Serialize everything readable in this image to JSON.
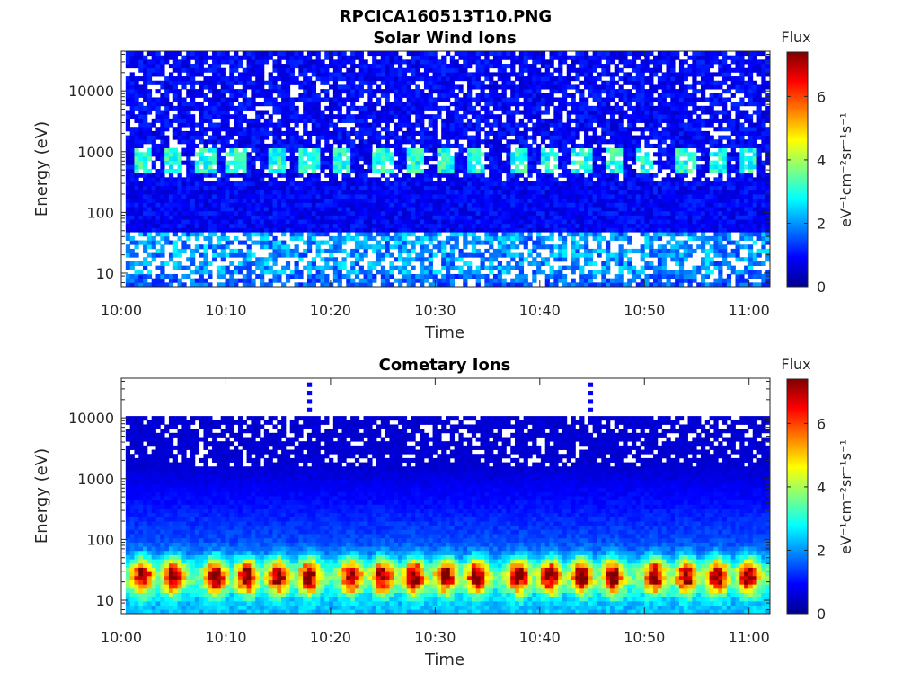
{
  "figure": {
    "title": "RPCICA160513T10.PNG"
  },
  "chart_data": [
    {
      "type": "heatmap",
      "title": "Solar Wind Ions",
      "xlabel": "Time",
      "ylabel": "Energy (eV)",
      "x_range": [
        "10:00",
        "11:02"
      ],
      "x_ticks": [
        "10:00",
        "10:10",
        "10:20",
        "10:30",
        "10:40",
        "10:50",
        "11:00"
      ],
      "y_scale": "log",
      "y_range": [
        6,
        45000
      ],
      "y_ticks": [
        10,
        100,
        1000,
        10000
      ],
      "y_tick_labels": [
        "10",
        "100",
        "1000",
        "10000"
      ],
      "colorbar": {
        "title": "Flux",
        "label": "eV⁻¹cm⁻²sr⁻¹s⁻¹",
        "range": [
          0,
          7.4
        ],
        "ticks": [
          0,
          2,
          4,
          6
        ],
        "colormap": "jet"
      },
      "features": {
        "background_level": 0.9,
        "periodic_peak_energy_eV": 700,
        "periodic_peak_level": 3.0,
        "peak_times": [
          "10:02",
          "10:05",
          "10:08",
          "10:11",
          "10:15",
          "10:18",
          "10:21",
          "10:25",
          "10:28",
          "10:31",
          "10:34",
          "10:38",
          "10:41",
          "10:44",
          "10:47",
          "10:50",
          "10:54",
          "10:57",
          "11:00"
        ],
        "low_energy_band_eV": [
          12,
          40
        ],
        "low_energy_band_level": 2.5
      }
    },
    {
      "type": "heatmap",
      "title": "Cometary Ions",
      "xlabel": "Time",
      "ylabel": "Energy (eV)",
      "x_range": [
        "10:00",
        "11:02"
      ],
      "x_ticks": [
        "10:00",
        "10:10",
        "10:20",
        "10:30",
        "10:40",
        "10:50",
        "11:00"
      ],
      "y_scale": "log",
      "y_range": [
        6,
        45000
      ],
      "y_ticks": [
        10,
        100,
        1000,
        10000
      ],
      "y_tick_labels": [
        "10",
        "100",
        "1000",
        "10000"
      ],
      "colorbar": {
        "title": "Flux",
        "label": "eV⁻¹cm⁻²sr⁻¹s⁻¹",
        "range": [
          0,
          7.4
        ],
        "ticks": [
          0,
          2,
          4,
          6
        ],
        "colormap": "jet"
      },
      "features": {
        "background_level": 0.6,
        "peak_energy_eV": 25,
        "peak_level": 6.0,
        "peak_times": [
          "10:02",
          "10:05",
          "10:09",
          "10:12",
          "10:15",
          "10:18",
          "10:22",
          "10:25",
          "10:28",
          "10:31",
          "10:34",
          "10:38",
          "10:41",
          "10:44",
          "10:47",
          "10:51",
          "10:54",
          "10:57",
          "11:00"
        ],
        "data_energy_max_eV": 11000,
        "spike_times": [
          "10:18",
          "10:45"
        ]
      }
    }
  ]
}
